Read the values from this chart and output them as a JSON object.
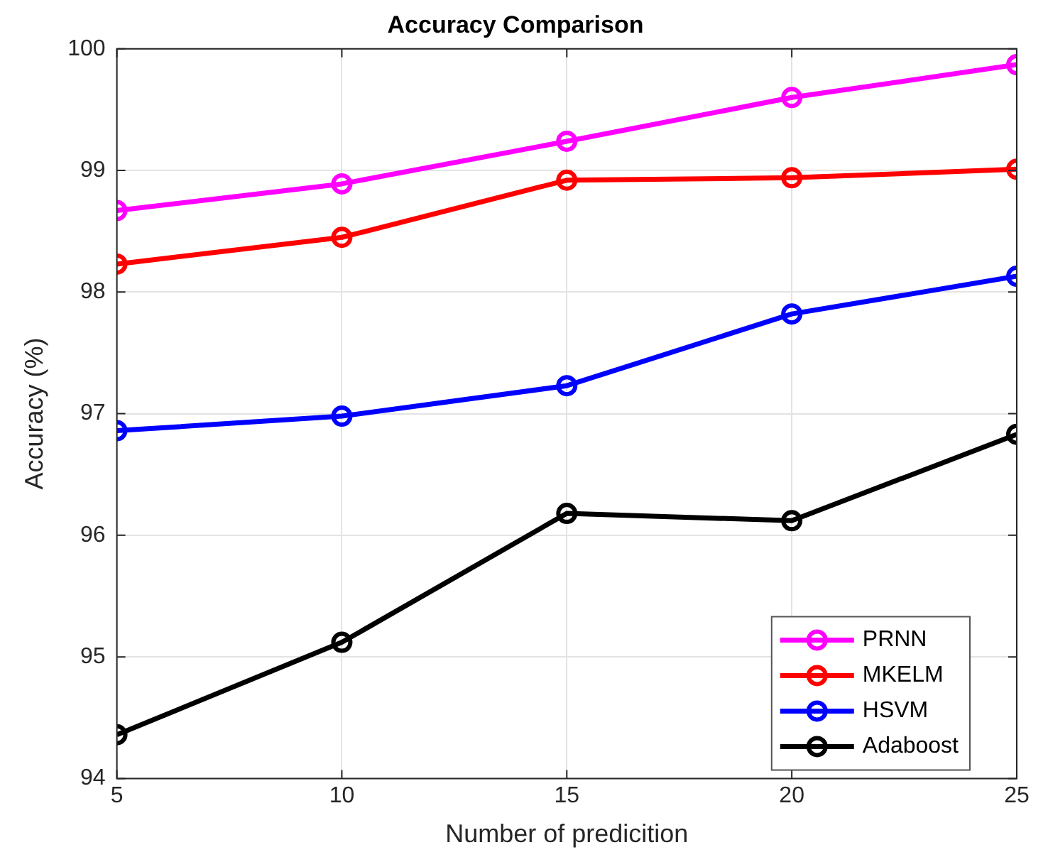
{
  "chart_data": {
    "type": "line",
    "title": "Accuracy Comparison",
    "xlabel": "Number of predicition",
    "ylabel": "Accuracy (%)",
    "x": [
      5,
      10,
      15,
      20,
      25
    ],
    "series": [
      {
        "name": "PRNN",
        "color": "#ff00ff",
        "values": [
          98.67,
          98.89,
          99.24,
          99.6,
          99.87
        ]
      },
      {
        "name": "MKELM",
        "color": "#ff0000",
        "values": [
          98.23,
          98.45,
          98.92,
          98.94,
          99.01
        ]
      },
      {
        "name": "HSVM",
        "color": "#0000ff",
        "values": [
          96.86,
          96.98,
          97.23,
          97.82,
          98.13
        ]
      },
      {
        "name": "Adaboost",
        "color": "#000000",
        "values": [
          94.36,
          95.12,
          96.18,
          96.12,
          96.83
        ]
      }
    ],
    "xlim": [
      5,
      25
    ],
    "xticks": [
      5,
      10,
      15,
      20,
      25
    ],
    "ylim": [
      94,
      100
    ],
    "yticks": [
      94,
      95,
      96,
      97,
      98,
      99,
      100
    ],
    "grid": true,
    "legend": "bottom right",
    "marker": "circle",
    "line_style": "solid"
  }
}
